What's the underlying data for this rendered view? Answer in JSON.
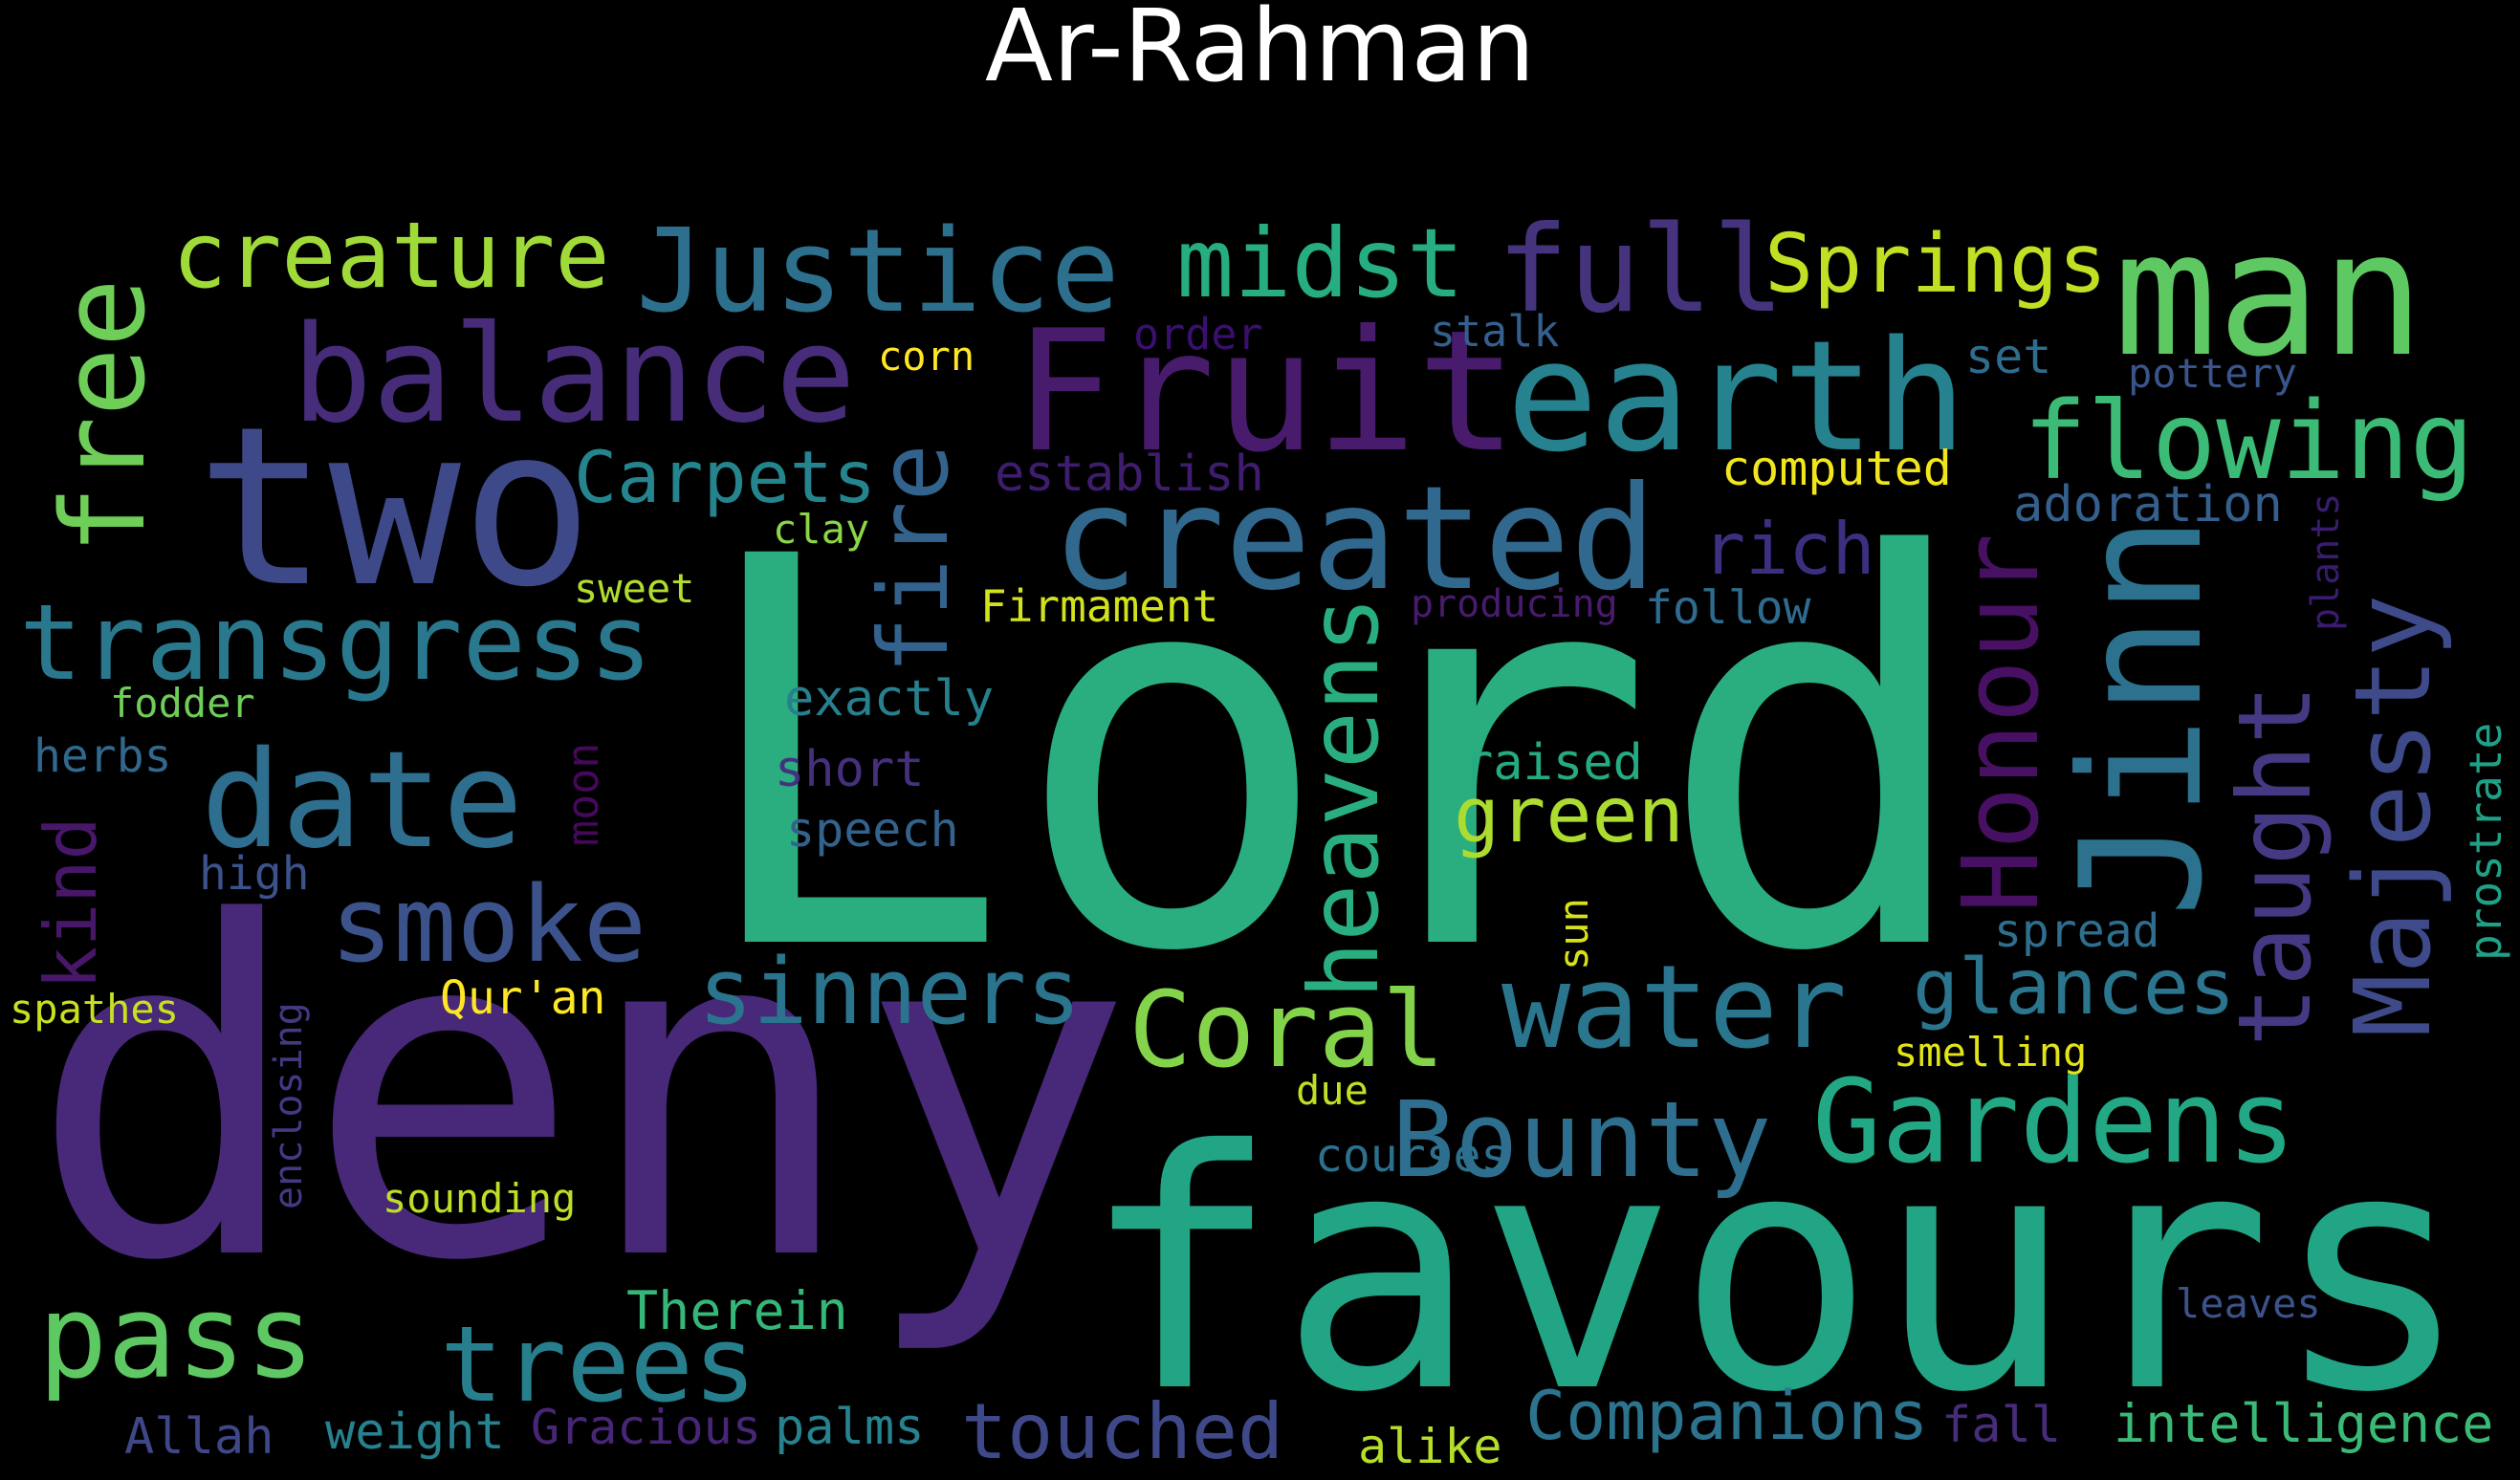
{
  "title": "Ar-Rahman",
  "palette": [
    "#440154",
    "#482878",
    "#3e4989",
    "#31688e",
    "#26828e",
    "#1f9e89",
    "#35b779",
    "#6ece58",
    "#b5de2b",
    "#fde725"
  ],
  "words": [
    {
      "text": "Lord",
      "color": "#2aae80"
    },
    {
      "text": "deny",
      "color": "#482878"
    },
    {
      "text": "favours",
      "color": "#21a585"
    },
    {
      "text": "two",
      "color": "#3e4989"
    },
    {
      "text": "man",
      "color": "#5ec962"
    },
    {
      "text": "Fruit",
      "color": "#481b6d"
    },
    {
      "text": "earth",
      "color": "#26828e"
    },
    {
      "text": "balance",
      "color": "#472c7a"
    },
    {
      "text": "created",
      "color": "#31688e"
    },
    {
      "text": "Jinn",
      "color": "#2c728e"
    },
    {
      "text": "Justice",
      "color": "#2d708e"
    },
    {
      "text": "full",
      "color": "#46337e"
    },
    {
      "text": "midst",
      "color": "#26ad81"
    },
    {
      "text": "creature",
      "color": "#a0da39"
    },
    {
      "text": "free",
      "color": "#6ece58"
    },
    {
      "text": "Springs",
      "color": "#c2df23"
    },
    {
      "text": "flowing",
      "color": "#3bbb75"
    },
    {
      "text": "fire",
      "color": "#33638d"
    },
    {
      "text": "transgress",
      "color": "#2a788e"
    },
    {
      "text": "Carpets",
      "color": "#25858e"
    },
    {
      "text": "date",
      "color": "#2e6e8e"
    },
    {
      "text": "smoke",
      "color": "#3b528b"
    },
    {
      "text": "Honour",
      "color": "#471063"
    },
    {
      "text": "Majesty",
      "color": "#3e4a89"
    },
    {
      "text": "taught",
      "color": "#443983"
    },
    {
      "text": "heavens",
      "color": "#29af7f"
    },
    {
      "text": "rich",
      "color": "#3b2f80"
    },
    {
      "text": "green",
      "color": "#addc30"
    },
    {
      "text": "water",
      "color": "#2a768e"
    },
    {
      "text": "Coral",
      "color": "#84d44b"
    },
    {
      "text": "Bounty",
      "color": "#2e6e8e"
    },
    {
      "text": "Gardens",
      "color": "#22a884"
    },
    {
      "text": "sinners",
      "color": "#2b748e"
    },
    {
      "text": "glances",
      "color": "#2b758e"
    },
    {
      "text": "pass",
      "color": "#5ec962"
    },
    {
      "text": "trees",
      "color": "#277f8e"
    },
    {
      "text": "kind",
      "color": "#481769"
    },
    {
      "text": "touched",
      "color": "#3f4889"
    },
    {
      "text": "Companions",
      "color": "#2c738e"
    },
    {
      "text": "intelligence",
      "color": "#3aba76"
    },
    {
      "text": "corn",
      "color": "#fde725"
    },
    {
      "text": "order",
      "color": "#3b0f70"
    },
    {
      "text": "stalk",
      "color": "#355f8d"
    },
    {
      "text": "set",
      "color": "#2e6d8e"
    },
    {
      "text": "pottery",
      "color": "#39558c"
    },
    {
      "text": "computed",
      "color": "#f1e51d"
    },
    {
      "text": "establish",
      "color": "#3f1d6e"
    },
    {
      "text": "adoration",
      "color": "#355f8d"
    },
    {
      "text": "plants",
      "color": "#3a1c6e"
    },
    {
      "text": "clay",
      "color": "#8bd646"
    },
    {
      "text": "sweet",
      "color": "#b0dd2f"
    },
    {
      "text": "Firmament",
      "color": "#d2e21b"
    },
    {
      "text": "producing",
      "color": "#481b6d"
    },
    {
      "text": "follow",
      "color": "#2f6b8e"
    },
    {
      "text": "exactly",
      "color": "#27808e"
    },
    {
      "text": "fodder",
      "color": "#6ece58"
    },
    {
      "text": "herbs",
      "color": "#31688e"
    },
    {
      "text": "moon",
      "color": "#46085c"
    },
    {
      "text": "short",
      "color": "#46307e"
    },
    {
      "text": "raised",
      "color": "#25ab82"
    },
    {
      "text": "prostrate",
      "color": "#1fa187"
    },
    {
      "text": "speech",
      "color": "#33638d"
    },
    {
      "text": "high",
      "color": "#3b528b"
    },
    {
      "text": "sun",
      "color": "#d8e219"
    },
    {
      "text": "spread",
      "color": "#2e6e8e"
    },
    {
      "text": "spathes",
      "color": "#c8e020"
    },
    {
      "text": "enclosing",
      "color": "#443983"
    },
    {
      "text": "Qur'an",
      "color": "#fde725"
    },
    {
      "text": "smelling",
      "color": "#e2e418"
    },
    {
      "text": "due",
      "color": "#c2df23"
    },
    {
      "text": "courses",
      "color": "#2d708e"
    },
    {
      "text": "sounding",
      "color": "#bddf26"
    },
    {
      "text": "leaves",
      "color": "#3b528b"
    },
    {
      "text": "Therein",
      "color": "#35b779"
    },
    {
      "text": "Allah",
      "color": "#3f4788"
    },
    {
      "text": "weight",
      "color": "#26828e"
    },
    {
      "text": "Gracious",
      "color": "#482677"
    },
    {
      "text": "palms",
      "color": "#26828e"
    },
    {
      "text": "alike",
      "color": "#b5de2b"
    },
    {
      "text": "fall",
      "color": "#472c7a"
    }
  ]
}
